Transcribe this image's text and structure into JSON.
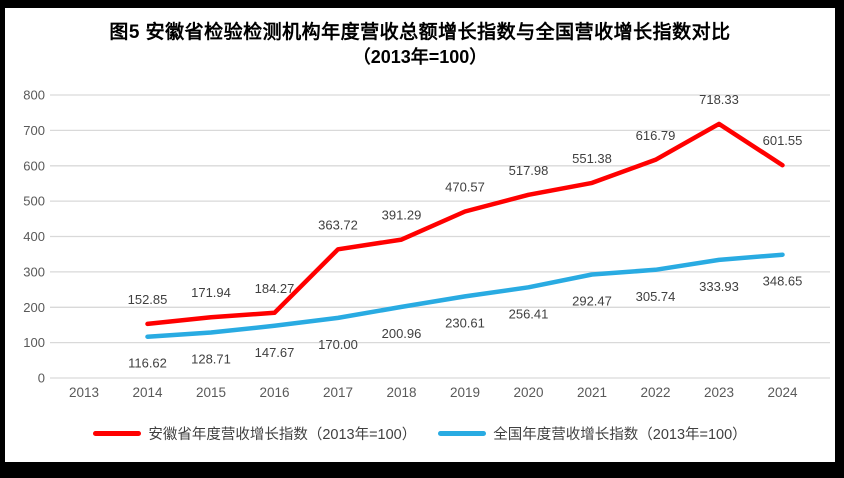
{
  "title": {
    "line1": "图5  安徽省检验检测机构年度营收总额增长指数与全国营收增长指数对比",
    "line2": "（2013年=100）"
  },
  "chart_data": {
    "type": "line",
    "categories": [
      "2013",
      "2014",
      "2015",
      "2016",
      "2017",
      "2018",
      "2019",
      "2020",
      "2021",
      "2022",
      "2023",
      "2024"
    ],
    "series": [
      {
        "name": "安徽省年度营收增长指数（2013年=100）",
        "color": "#FF0000",
        "label_position": "above",
        "values": [
          null,
          152.85,
          171.94,
          184.27,
          363.72,
          391.29,
          470.57,
          517.98,
          551.38,
          616.79,
          718.33,
          601.55
        ]
      },
      {
        "name": "全国年度营收增长指数（2013年=100）",
        "color": "#29ABE2",
        "label_position": "below",
        "values": [
          null,
          116.62,
          128.71,
          147.67,
          170.0,
          200.96,
          230.61,
          256.41,
          292.47,
          305.74,
          333.93,
          348.65
        ]
      }
    ],
    "xlabel": "",
    "ylabel": "",
    "ylim": [
      0,
      800
    ],
    "y_tick_step": 100,
    "grid": "horizontal",
    "legend_position": "bottom",
    "data_label_decimals": 2,
    "colors": {
      "gridline": "#D9D9D9",
      "axis_tick_label": "#595959",
      "data_label": "#404040",
      "title": "#000000",
      "frame_border": "#000000"
    }
  }
}
